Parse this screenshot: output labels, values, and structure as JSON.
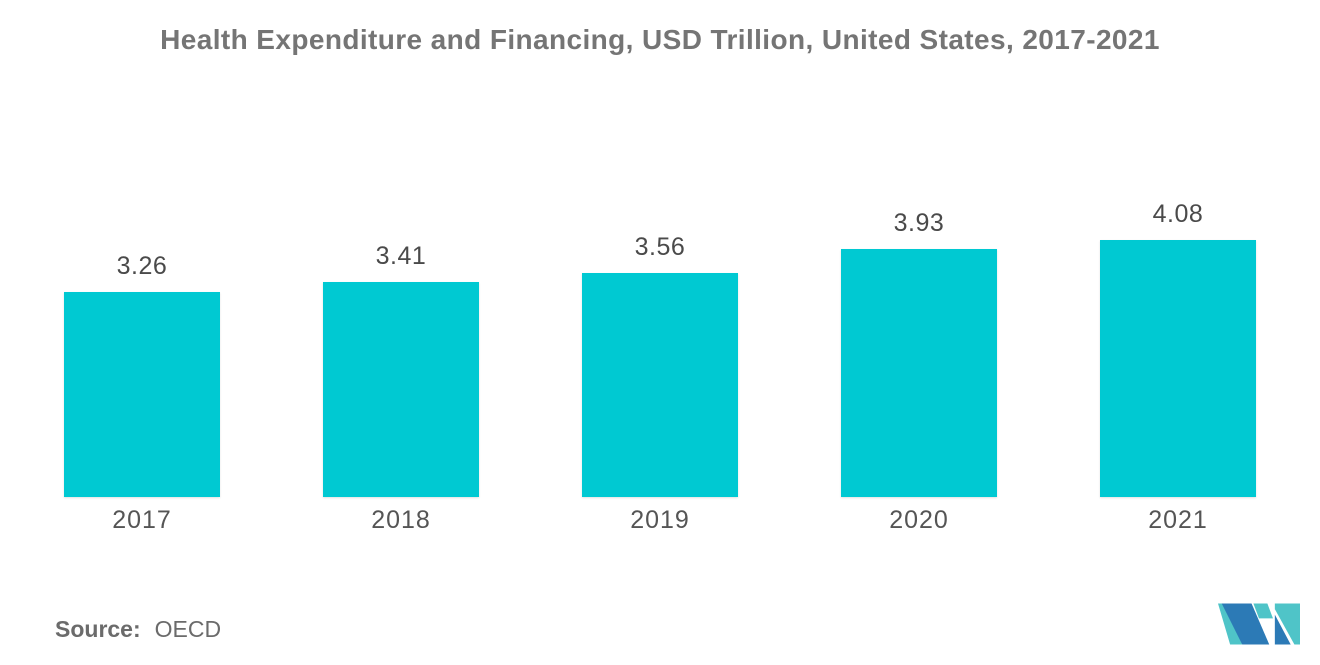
{
  "chart_data": {
    "type": "bar",
    "title": "Health Expenditure and Financing, USD Trillion, United States, 2017-2021",
    "categories": [
      "2017",
      "2018",
      "2019",
      "2020",
      "2021"
    ],
    "values": [
      3.26,
      3.41,
      3.56,
      3.93,
      4.08
    ],
    "value_labels": [
      "3.26",
      "3.41",
      "3.56",
      "3.93",
      "4.08"
    ],
    "xlabel": "",
    "ylabel": "",
    "ylim": [
      0,
      4.4
    ],
    "grid": false,
    "legend": "none",
    "axes_visible": false,
    "bar_color": "#00C9D2",
    "value_label_color": "#4A4A4A",
    "axis_label_color": "#555555",
    "title_color": "#757575"
  },
  "footer": {
    "source_label": "Source:",
    "source_value": "OECD",
    "logo_name": "mordor-intelligence-logo",
    "logo_colors": {
      "teal": "#4FC4C8",
      "blue": "#2C7AB6"
    }
  }
}
